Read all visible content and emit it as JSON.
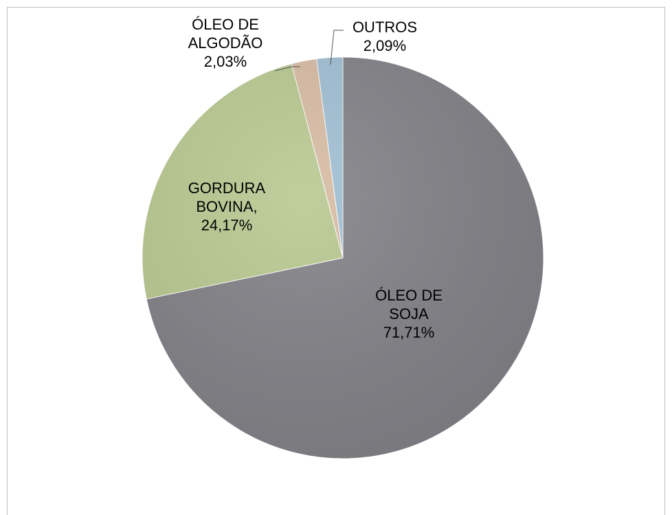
{
  "chart_data": {
    "type": "pie",
    "categories": [
      "ÓLEO DE SOJA",
      "GORDURA BOVINA,",
      "ÓLEO DE ALGODÃO",
      "OUTROS"
    ],
    "values": [
      71.71,
      24.17,
      2.03,
      2.09
    ],
    "value_labels": [
      "71,71%",
      "24,17%",
      "2,03%",
      "2,09%"
    ],
    "colors": [
      "#808086",
      "#b8c890",
      "#d6bba3",
      "#9fbed2"
    ]
  }
}
